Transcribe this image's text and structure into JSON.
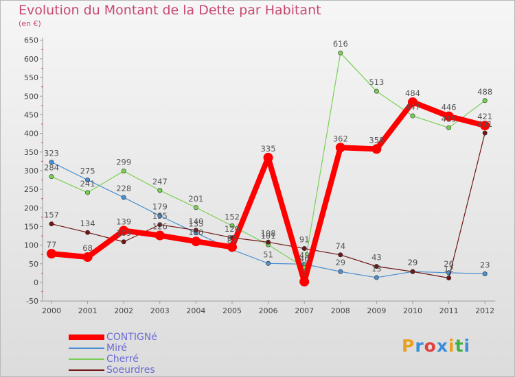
{
  "title": "Evolution du Montant de la Dette par Habitant",
  "subtitle": "(en €)",
  "logo": {
    "text": "Proxiti",
    "colors": [
      "#e8a020",
      "#3a8fd8",
      "#e04040",
      "#3a8fd8",
      "#e8a020",
      "#40b040",
      "#3a8fd8"
    ]
  },
  "chart_data": {
    "type": "line",
    "x": [
      "2000",
      "2001",
      "2002",
      "2003",
      "2004",
      "2005",
      "2006",
      "2007",
      "2008",
      "2009",
      "2010",
      "2011",
      "2012"
    ],
    "ylim": [
      -50,
      650
    ],
    "yticks": [
      -50,
      0,
      50,
      100,
      150,
      200,
      250,
      300,
      350,
      400,
      450,
      500,
      550,
      600,
      650
    ],
    "grid": false,
    "legend_position": "bottom-left",
    "series": [
      {
        "name": "CONTIGNé",
        "color": "#ff0000",
        "values": [
          77,
          68,
          139,
          126,
          110,
          95,
          335,
          2,
          362,
          358,
          484,
          446,
          421
        ],
        "labels": [
          "77",
          "68",
          "139",
          "126",
          "110",
          "95",
          "335",
          "2",
          "362",
          "358",
          "484",
          "446",
          "421"
        ]
      },
      {
        "name": "Miré",
        "color": "#4a90d0",
        "values": [
          323,
          275,
          228,
          179,
          133,
          88,
          51,
          49,
          29,
          13,
          29,
          26,
          23
        ],
        "labels": [
          "323",
          "275",
          "228",
          "179",
          "133",
          "88",
          "51",
          "49",
          "29",
          "13",
          "29",
          "26",
          "23"
        ]
      },
      {
        "name": "Cherré",
        "color": "#77d055",
        "values": [
          284,
          241,
          299,
          247,
          201,
          152,
          101,
          40,
          616,
          513,
          447,
          415,
          488
        ],
        "labels": [
          "284",
          "241",
          "299",
          "247",
          "201",
          "152",
          "101",
          "40",
          "616",
          "513",
          "447",
          "415",
          "488"
        ]
      },
      {
        "name": "Soeurdres",
        "color": "#6e1515",
        "values": [
          157,
          134,
          109,
          155,
          140,
          120,
          108,
          91,
          74,
          43,
          29,
          12,
          401
        ],
        "labels": [
          "157",
          "134",
          "109",
          "155",
          "140",
          "120",
          "108",
          "91",
          "74",
          "43",
          "29",
          "12",
          "401"
        ]
      }
    ]
  }
}
